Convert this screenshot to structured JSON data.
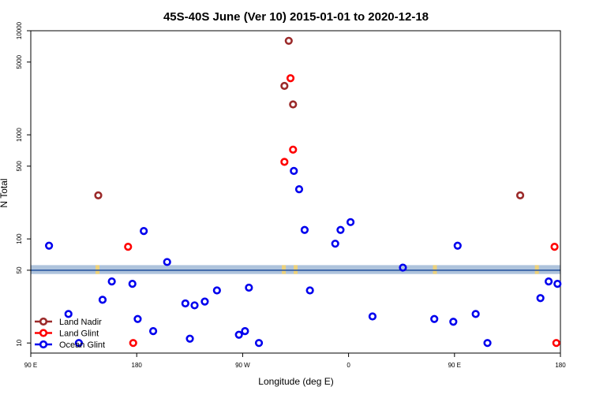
{
  "chart_data": {
    "type": "scatter",
    "title": "45S-40S June (Ver 10)   2015-01-01 to 2020-12-18",
    "xlabel": "Longitude (deg E)",
    "ylabel": "N Total",
    "y_scale": "log",
    "xlim": [
      -90,
      180
    ],
    "ylim": [
      8,
      10000
    ],
    "x_ticks": [
      {
        "value": -90,
        "label": "90 E"
      },
      {
        "value": -36,
        "label": "180"
      },
      {
        "value": 18,
        "label": "90 W"
      },
      {
        "value": 72,
        "label": "0"
      },
      {
        "value": 126,
        "label": "90 E"
      },
      {
        "value": 180,
        "label": "180"
      }
    ],
    "y_ticks": [
      {
        "value": 10,
        "label": "10"
      },
      {
        "value": 50,
        "label": "50"
      },
      {
        "value": 100,
        "label": "100"
      },
      {
        "value": 500,
        "label": "500"
      },
      {
        "value": 1000,
        "label": "1000"
      },
      {
        "value": 5000,
        "label": "5000"
      },
      {
        "value": 10000,
        "label": "10000"
      }
    ],
    "reference_line": {
      "value": 50,
      "band": [
        46,
        56
      ],
      "color": "#1f4e9c",
      "band_color": "#aec3dc"
    },
    "band_highlight_color": "#f7d46a",
    "band_highlight_x": [
      -56,
      39,
      45,
      116,
      168
    ],
    "legend_position": "bottom-left",
    "grid": false,
    "series": [
      {
        "name": "Land Nadir",
        "color": "#9b2a2a",
        "points": [
          {
            "x": -55.6,
            "y": 262
          },
          {
            "x": 39.3,
            "y": 2950
          },
          {
            "x": 41.5,
            "y": 8000
          },
          {
            "x": 43.7,
            "y": 1960
          },
          {
            "x": 159.5,
            "y": 262
          }
        ]
      },
      {
        "name": "Land Glint",
        "color": "#ff0000",
        "points": [
          {
            "x": -40.4,
            "y": 84
          },
          {
            "x": -37.8,
            "y": 10
          },
          {
            "x": 39.3,
            "y": 550
          },
          {
            "x": 42.4,
            "y": 3500
          },
          {
            "x": 43.7,
            "y": 720
          },
          {
            "x": 177.0,
            "y": 84
          },
          {
            "x": 177.9,
            "y": 10
          }
        ]
      },
      {
        "name": "Ocean Glint",
        "color": "#0000ee",
        "points": [
          {
            "x": -80.7,
            "y": 86
          },
          {
            "x": -70.8,
            "y": 19
          },
          {
            "x": -65.5,
            "y": 10
          },
          {
            "x": -53.4,
            "y": 26
          },
          {
            "x": -48.7,
            "y": 39
          },
          {
            "x": -38.2,
            "y": 37
          },
          {
            "x": -35.5,
            "y": 17
          },
          {
            "x": -32.4,
            "y": 119
          },
          {
            "x": -27.6,
            "y": 13
          },
          {
            "x": -20.5,
            "y": 60
          },
          {
            "x": -11.2,
            "y": 24
          },
          {
            "x": -8.9,
            "y": 11
          },
          {
            "x": -6.5,
            "y": 23
          },
          {
            "x": -1.3,
            "y": 25
          },
          {
            "x": 4.9,
            "y": 32
          },
          {
            "x": 16.1,
            "y": 12
          },
          {
            "x": 19.2,
            "y": 13
          },
          {
            "x": 21.2,
            "y": 34
          },
          {
            "x": 26.3,
            "y": 10
          },
          {
            "x": 44.1,
            "y": 450
          },
          {
            "x": 46.8,
            "y": 300
          },
          {
            "x": 49.6,
            "y": 122
          },
          {
            "x": 52.3,
            "y": 32
          },
          {
            "x": 67.9,
            "y": 122
          },
          {
            "x": 65.2,
            "y": 90
          },
          {
            "x": 73.0,
            "y": 145
          },
          {
            "x": 84.2,
            "y": 18
          },
          {
            "x": 99.7,
            "y": 53
          },
          {
            "x": 115.7,
            "y": 17
          },
          {
            "x": 125.4,
            "y": 16
          },
          {
            "x": 127.6,
            "y": 86
          },
          {
            "x": 136.8,
            "y": 19
          },
          {
            "x": 142.8,
            "y": 10
          },
          {
            "x": 169.8,
            "y": 27
          },
          {
            "x": 174.0,
            "y": 39
          },
          {
            "x": 178.5,
            "y": 37
          }
        ]
      }
    ]
  }
}
